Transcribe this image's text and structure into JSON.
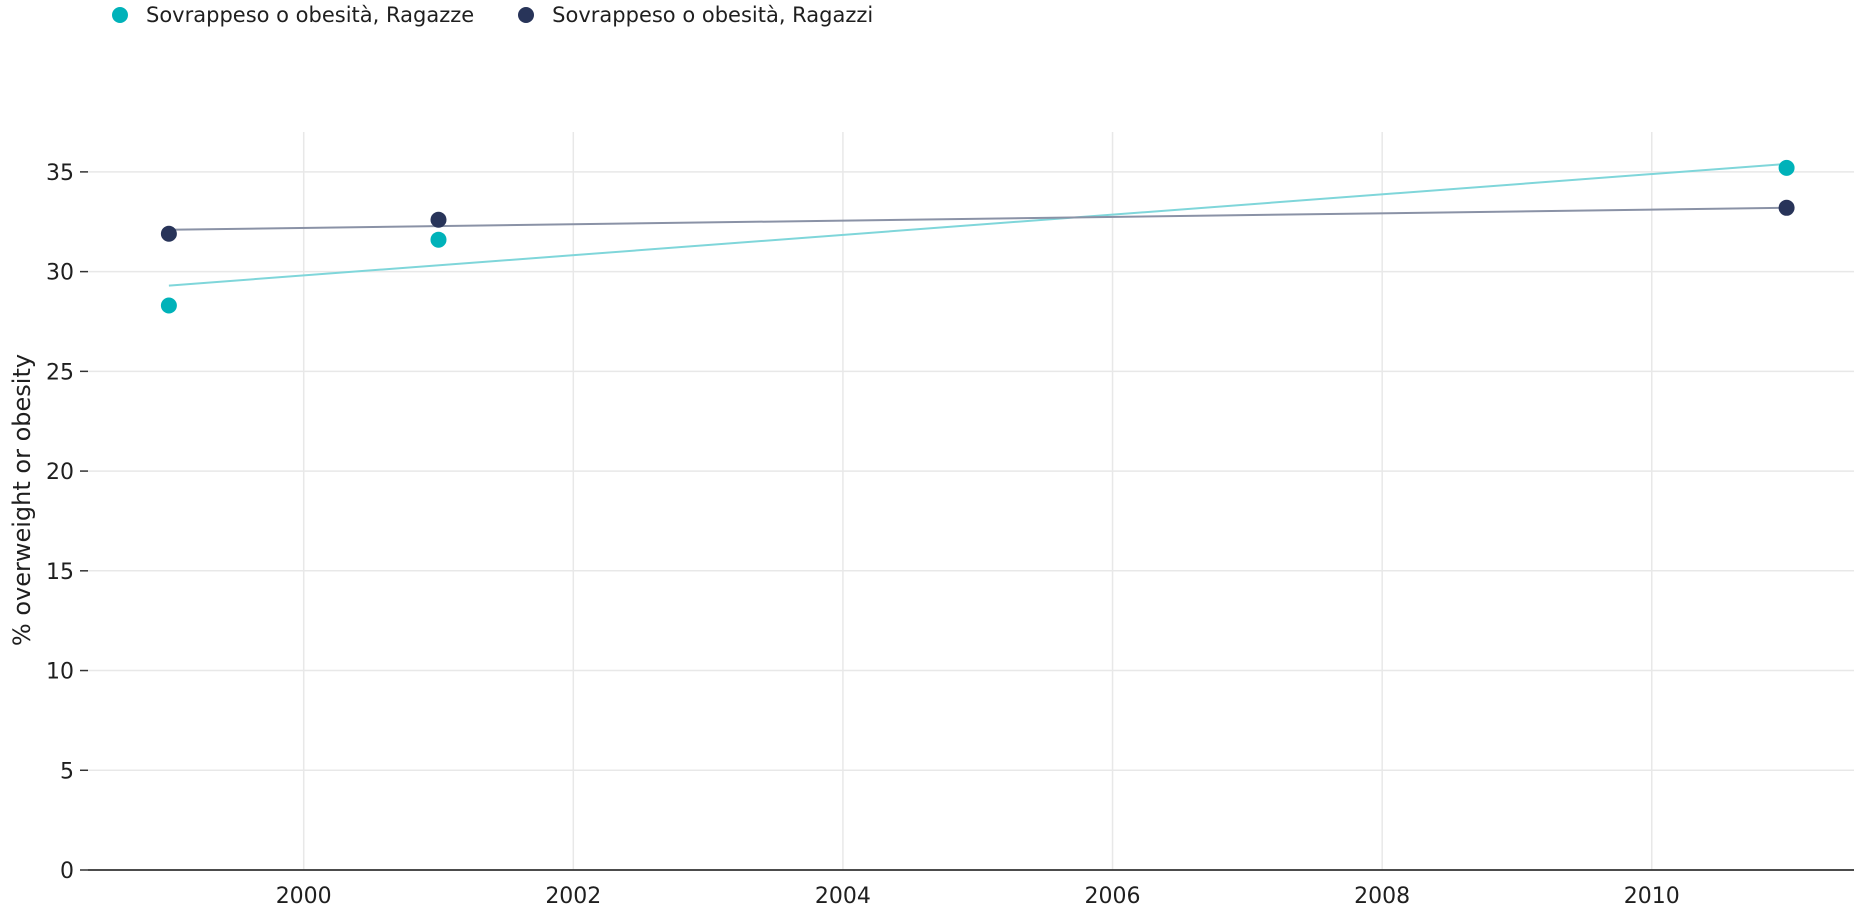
{
  "chart_data": {
    "type": "scatter",
    "ylabel": "% overweight or obesity",
    "xlabel": "",
    "xlim": [
      1998.4,
      2011.5
    ],
    "ylim": [
      0,
      37
    ],
    "xticks": [
      2000,
      2002,
      2004,
      2006,
      2008,
      2010
    ],
    "yticks": [
      0,
      5,
      10,
      15,
      20,
      25,
      30,
      35
    ],
    "grid": true,
    "legend_position": "top-left",
    "series": [
      {
        "name": "Sovrappeso o obesità, Ragazze",
        "color": "#00b2b9",
        "trend_color": "#7fd6da",
        "x": [
          1999,
          2001,
          2011
        ],
        "y": [
          28.3,
          31.6,
          35.2
        ],
        "trendline": [
          [
            1999,
            29.3
          ],
          [
            2011,
            35.4
          ]
        ]
      },
      {
        "name": "Sovrappeso o obesità, Ragazzi",
        "color": "#283459",
        "trend_color": "#8a92a6",
        "x": [
          1999,
          2001,
          2011
        ],
        "y": [
          31.9,
          32.6,
          33.2
        ],
        "trendline": [
          [
            1999,
            32.1
          ],
          [
            2011,
            33.2
          ]
        ]
      }
    ]
  }
}
